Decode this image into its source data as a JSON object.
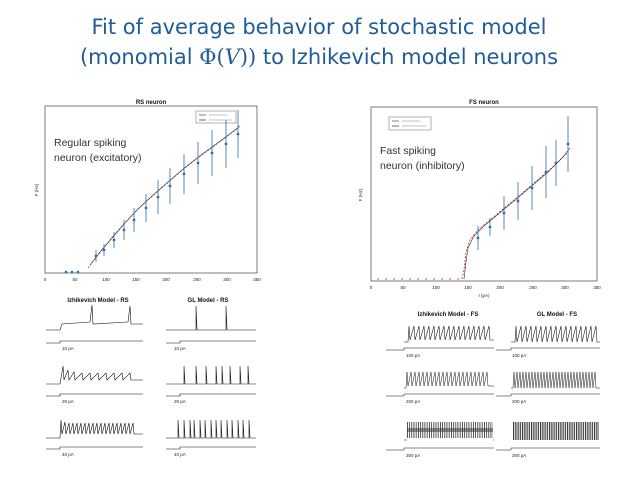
{
  "slide": {
    "title_line1": "Fit of average behavior of stochastic model",
    "title_line2_pre": "(monomial ",
    "title_line2_phi": "Φ(",
    "title_line2_v": "V",
    "title_line2_close": "))",
    "title_line2_post": " to Izhikevich model neurons"
  },
  "left_panel": {
    "plot_title": "RS neuron",
    "annotation_line1": "Regular spiking",
    "annotation_line2": "neuron (excitatory)",
    "y_axis_label": "F (Hz)",
    "x_ticks": [
      "0",
      "50",
      "100",
      "150",
      "200",
      "250",
      "300",
      "350"
    ],
    "trace_headers": [
      "Izhikevich Model - RS",
      "GL Model - RS"
    ],
    "scale_labels": [
      "10 pA",
      "20 pA",
      "40 pA"
    ]
  },
  "right_panel": {
    "plot_title": "FS neuron",
    "annotation_line1": "Fast spiking",
    "annotation_line2": "neuron (inhibitory)",
    "y_axis_label": "F (Hz)",
    "x_label": "I (pA)",
    "x_ticks": [
      "0",
      "50",
      "100",
      "150",
      "200",
      "250",
      "300",
      "350"
    ],
    "trace_headers": [
      "Izhikevich Model - FS",
      "GL Model - FS"
    ],
    "scale_labels": [
      "100 pA",
      "200 pA",
      "300 pA"
    ]
  }
}
